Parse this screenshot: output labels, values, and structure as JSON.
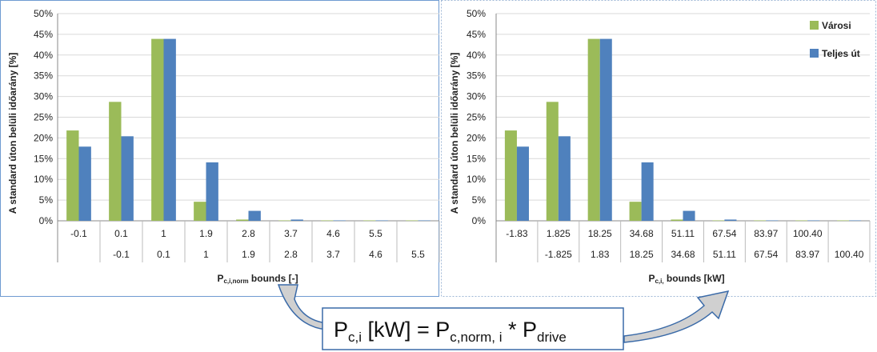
{
  "colors": {
    "green": "#9bbb59",
    "blue": "#4f81bd",
    "grid": "#d9d9d9",
    "frame": "#6f9bd1",
    "formula_bg": "#ffffff",
    "arrow_fill": "#cfcfcf",
    "arrow_stroke": "#3a6aa8"
  },
  "legend": {
    "varosi": "Városi",
    "teljes": "Teljes út"
  },
  "formula": {
    "p1": "P",
    "s1": "c,i",
    "p2": " [kW] = P",
    "s2": "c,norm, i",
    "p3": " * P",
    "s3": "drive"
  },
  "chart_data": [
    {
      "type": "bar",
      "ylabel": "A standard úton belüli időarány [%]",
      "xlabel_main": "P",
      "xlabel_sub": "c,i,norm",
      "xlabel_tail": " bounds [-]",
      "yticks": [
        "0%",
        "5%",
        "10%",
        "15%",
        "20%",
        "25%",
        "30%",
        "35%",
        "40%",
        "45%",
        "50%"
      ],
      "ylim": [
        0,
        50
      ],
      "categories_upper": [
        "-0.1",
        "0.1",
        "1",
        "1.9",
        "2.8",
        "3.7",
        "4.6",
        "5.5",
        ""
      ],
      "categories_lower": [
        "",
        "-0.1",
        "0.1",
        "1",
        "1.9",
        "2.8",
        "3.7",
        "4.6",
        "5.5"
      ],
      "series": [
        {
          "name": "Városi",
          "values": [
            21.8,
            28.7,
            43.9,
            4.6,
            0.3,
            0.1,
            0.1,
            0.1,
            0.1
          ]
        },
        {
          "name": "Teljes út",
          "values": [
            17.9,
            20.4,
            43.9,
            14.1,
            2.4,
            0.3,
            0.1,
            0.1,
            0.1
          ]
        }
      ],
      "legend": false
    },
    {
      "type": "bar",
      "ylabel": "A standard úton belüli időarány [%]",
      "xlabel_main": "P",
      "xlabel_sub": "c,i,",
      "xlabel_tail": " bounds [kW]",
      "yticks": [
        "0%",
        "5%",
        "10%",
        "15%",
        "20%",
        "25%",
        "30%",
        "35%",
        "40%",
        "45%",
        "50%"
      ],
      "ylim": [
        0,
        50
      ],
      "categories_upper": [
        "-1.83",
        "1.825",
        "18.25",
        "34.68",
        "51.11",
        "67.54",
        "83.97",
        "100.40",
        ""
      ],
      "categories_lower": [
        "",
        "-1.825",
        "1.83",
        "18.25",
        "34.68",
        "51.11",
        "67.54",
        "83.97",
        "100.40"
      ],
      "series": [
        {
          "name": "Városi",
          "values": [
            21.8,
            28.7,
            43.9,
            4.6,
            0.3,
            0.1,
            0.1,
            0.1,
            0.1
          ]
        },
        {
          "name": "Teljes út",
          "values": [
            17.9,
            20.4,
            43.9,
            14.1,
            2.4,
            0.3,
            0.1,
            0.1,
            0.1
          ]
        }
      ],
      "legend": true
    }
  ]
}
